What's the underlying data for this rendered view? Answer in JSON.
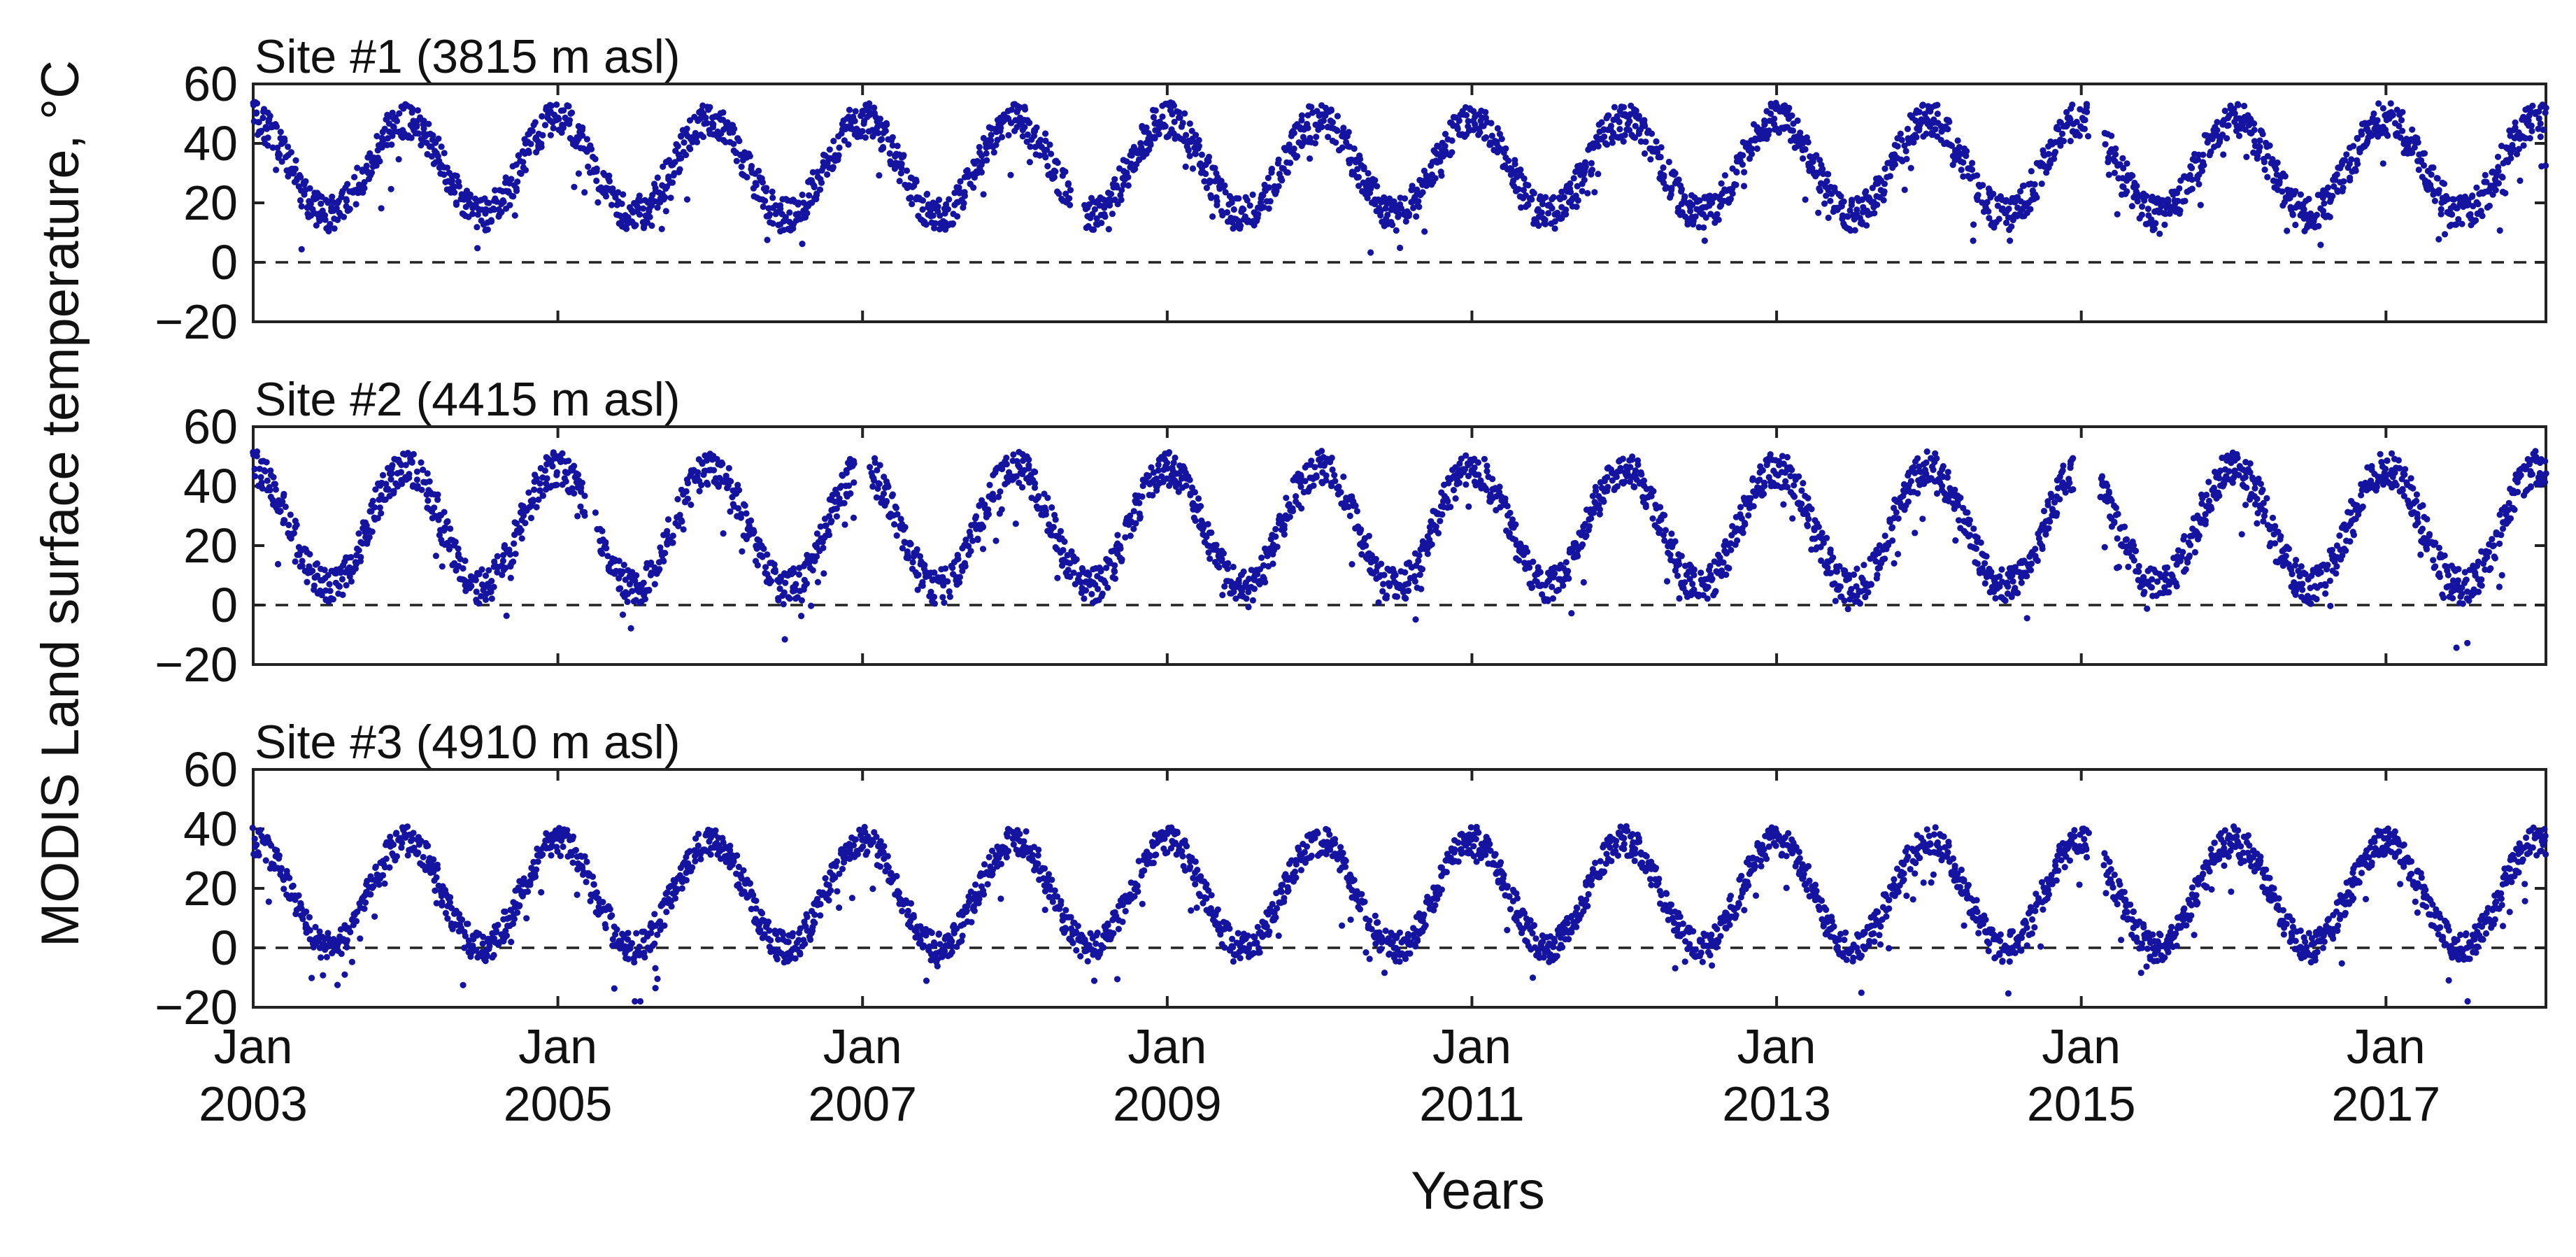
{
  "chart_data": [
    {
      "type": "scatter",
      "title": "Site #1 (3815 m asl)",
      "site": 1,
      "ylim": [
        -20,
        60
      ],
      "yticks": [
        60,
        40,
        20,
        0,
        -20
      ],
      "mean": 32,
      "amplitude": 16,
      "noise": 6,
      "gaps": [
        [
          2008.37,
          2008.46
        ],
        [
          2015.05,
          2015.15
        ]
      ],
      "series": [
        {
          "name": "MODIS LST",
          "color": "#1414a0"
        }
      ]
    },
    {
      "type": "scatter",
      "title": "Site #2 (4415 m asl)",
      "site": 2,
      "ylim": [
        -20,
        60
      ],
      "yticks": [
        60,
        40,
        20,
        0,
        -20
      ],
      "mean": 26,
      "amplitude": 20,
      "noise": 6,
      "gaps": [
        [
          2005.18,
          2005.25
        ],
        [
          2006.95,
          2007.05
        ],
        [
          2014.95,
          2015.12
        ]
      ],
      "series": [
        {
          "name": "MODIS LST",
          "color": "#1414a0"
        }
      ]
    },
    {
      "type": "scatter",
      "title": "Site #3 (4910 m asl)",
      "site": 3,
      "ylim": [
        -20,
        60
      ],
      "yticks": [
        60,
        40,
        20,
        0,
        -20
      ],
      "mean": 18,
      "amplitude": 18,
      "noise": 5,
      "gaps": [
        [
          2015.05,
          2015.15
        ]
      ],
      "series": [
        {
          "name": "MODIS LST",
          "color": "#1414a0"
        }
      ]
    }
  ],
  "shared": {
    "xlim": [
      2003.0,
      2018.05
    ],
    "xticks": [
      {
        "value": 2003,
        "month": "Jan",
        "year": "2003"
      },
      {
        "value": 2005,
        "month": "Jan",
        "year": "2005"
      },
      {
        "value": 2007,
        "month": "Jan",
        "year": "2007"
      },
      {
        "value": 2009,
        "month": "Jan",
        "year": "2009"
      },
      {
        "value": 2011,
        "month": "Jan",
        "year": "2011"
      },
      {
        "value": 2013,
        "month": "Jan",
        "year": "2013"
      },
      {
        "value": 2015,
        "month": "Jan",
        "year": "2015"
      },
      {
        "value": 2017,
        "month": "Jan",
        "year": "2017"
      }
    ],
    "xlabel": "Years",
    "ylabel": "MODIS Land surface temperature, °C",
    "reference_line": 0,
    "marker_color": "#1414a0",
    "frame_color": "#222222"
  }
}
